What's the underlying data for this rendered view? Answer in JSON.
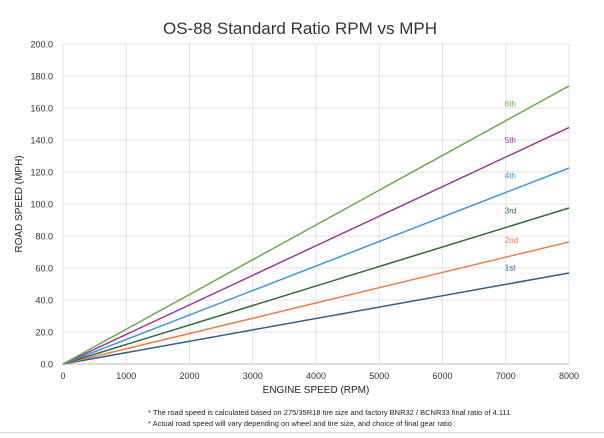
{
  "chart_data": {
    "type": "line",
    "title": "OS-88 Standard Ratio RPM vs MPH",
    "xlabel": "ENGINE SPEED (RPM)",
    "ylabel": "ROAD SPEED (MPH)",
    "xlim": [
      0,
      8000
    ],
    "ylim": [
      0,
      200
    ],
    "xticks": [
      "0",
      "1000",
      "2000",
      "3000",
      "4000",
      "5000",
      "6000",
      "7000",
      "8000"
    ],
    "yticks": [
      "0.0",
      "20.0",
      "40.0",
      "60.0",
      "80.0",
      "100.0",
      "120.0",
      "140.0",
      "160.0",
      "180.0",
      "200.0"
    ],
    "grid": true,
    "legend": "inline labels at 7000 RPM",
    "series": [
      {
        "name": "1st",
        "color": "#2e5f8a",
        "x": [
          0,
          8000
        ],
        "y": [
          0,
          56.9
        ]
      },
      {
        "name": "2nd",
        "color": "#ed7d4a",
        "x": [
          0,
          8000
        ],
        "y": [
          0,
          76.3
        ]
      },
      {
        "name": "3rd",
        "color": "#2f6b35",
        "x": [
          0,
          8000
        ],
        "y": [
          0,
          97.5
        ]
      },
      {
        "name": "4th",
        "color": "#3a9ad9",
        "x": [
          0,
          8000
        ],
        "y": [
          0,
          122.5
        ]
      },
      {
        "name": "5th",
        "color": "#9b3a9b",
        "x": [
          0,
          8000
        ],
        "y": [
          0,
          147.8
        ]
      },
      {
        "name": "6th",
        "color": "#6aaa4a",
        "x": [
          0,
          8000
        ],
        "y": [
          0,
          173.8
        ]
      }
    ]
  },
  "notes": [
    "* The road speed is calculated based on 275/35R18 tire size and factory BNR32 / BCNR33 final ratio of 4.111",
    "* Actual road speed will vary depending on wheel and tire size, and choice of final gear ratio"
  ]
}
